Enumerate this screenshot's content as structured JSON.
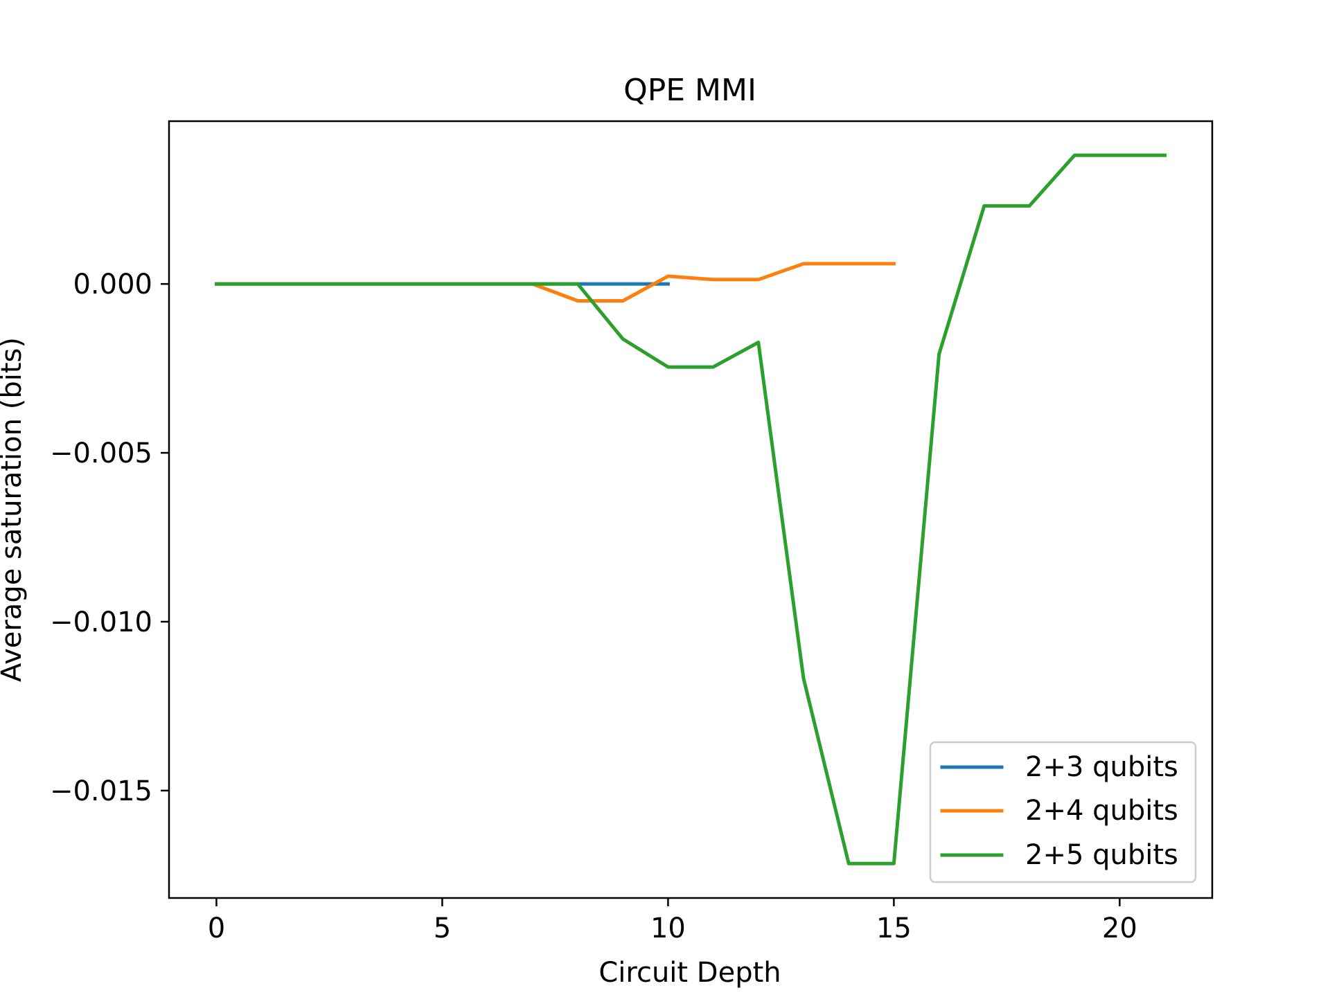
{
  "chart_data": {
    "type": "line",
    "title": "QPE MMI",
    "xlabel": "Circuit Depth",
    "ylabel": "Average saturation (bits)",
    "xlim": [
      -1.05,
      22.05
    ],
    "ylim": [
      -0.01818,
      0.00482
    ],
    "xticks": [
      0,
      5,
      10,
      15,
      20
    ],
    "yticks": [
      0.0,
      -0.005,
      -0.01,
      -0.015
    ],
    "xtick_labels": [
      "0",
      "5",
      "10",
      "15",
      "20"
    ],
    "ytick_labels": [
      "0.000",
      "−0.005",
      "−0.010",
      "−0.015"
    ],
    "legend_position": "lower-right",
    "grid": false,
    "series": [
      {
        "name": "2+3 qubits",
        "color": "#1f77b4",
        "x": [
          0,
          1,
          2,
          3,
          4,
          5,
          6,
          7,
          8,
          9,
          10
        ],
        "y": [
          0,
          0,
          0,
          0,
          0,
          0,
          0,
          0,
          0,
          0,
          0
        ]
      },
      {
        "name": "2+4 qubits",
        "color": "#ff7f0e",
        "x": [
          0,
          1,
          2,
          3,
          4,
          5,
          6,
          7,
          8,
          9,
          10,
          11,
          12,
          13,
          14,
          15
        ],
        "y": [
          0,
          0,
          0,
          0,
          0,
          0,
          0,
          0,
          -0.0005,
          -0.0005,
          0.00023,
          0.00013,
          0.00013,
          0.0006,
          0.0006,
          0.0006
        ]
      },
      {
        "name": "2+5 qubits",
        "color": "#2ca02c",
        "x": [
          0,
          1,
          2,
          3,
          4,
          5,
          6,
          7,
          8,
          9,
          10,
          11,
          12,
          13,
          14,
          15,
          16,
          17,
          18,
          19,
          20,
          21
        ],
        "y": [
          0,
          0,
          0,
          0,
          0,
          0,
          0,
          0,
          0,
          -0.00163,
          -0.00246,
          -0.00246,
          -0.00173,
          -0.01168,
          -0.01716,
          -0.01716,
          -0.00208,
          0.00231,
          0.00231,
          0.00381,
          0.00381,
          0.00381
        ]
      }
    ]
  }
}
